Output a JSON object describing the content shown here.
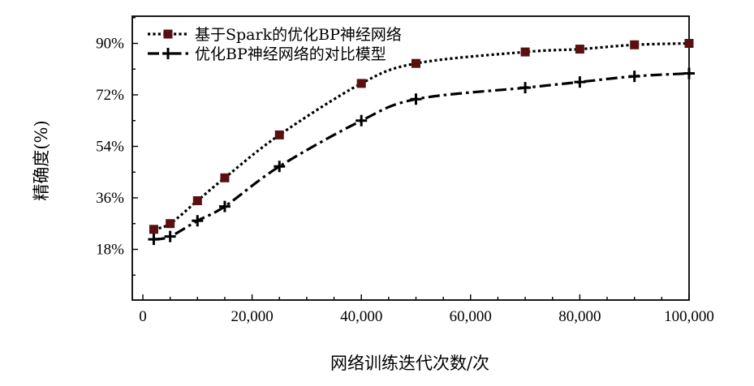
{
  "chart_data": {
    "type": "line",
    "title": "",
    "xlabel": "网络训练迭代次数/次",
    "ylabel": "精确度(%)",
    "xlim": [
      -2000,
      100000
    ],
    "ylim": [
      0,
      100
    ],
    "xticks": [
      0,
      20000,
      40000,
      60000,
      80000,
      100000
    ],
    "xtick_labels": [
      "0",
      "20,000",
      "40,000",
      "60,000",
      "80,000",
      "100,000"
    ],
    "yticks": [
      18,
      36,
      54,
      72,
      90
    ],
    "ytick_labels": [
      "18%",
      "36%",
      "54%",
      "72%",
      "90%"
    ],
    "grid": false,
    "legend_position": "top-left",
    "series": [
      {
        "name": "基于Spark的优化BP神经网络",
        "marker": "square",
        "line_style": "dotted",
        "color": "#5a1010",
        "x": [
          2000,
          5000,
          10000,
          15000,
          25000,
          40000,
          50000,
          70000,
          80000,
          90000,
          100000
        ],
        "y": [
          25,
          27,
          35,
          43,
          58,
          76,
          83,
          87,
          88,
          89.5,
          90
        ]
      },
      {
        "name": "优化BP神经网络的对比模型",
        "marker": "plus",
        "line_style": "dash-dot",
        "color": "#000000",
        "x": [
          2000,
          5000,
          10000,
          15000,
          25000,
          40000,
          50000,
          70000,
          80000,
          90000,
          100000
        ],
        "y": [
          21.5,
          22.5,
          28,
          33,
          47,
          63,
          70.5,
          74.5,
          76.5,
          78.5,
          79.5
        ]
      }
    ]
  }
}
